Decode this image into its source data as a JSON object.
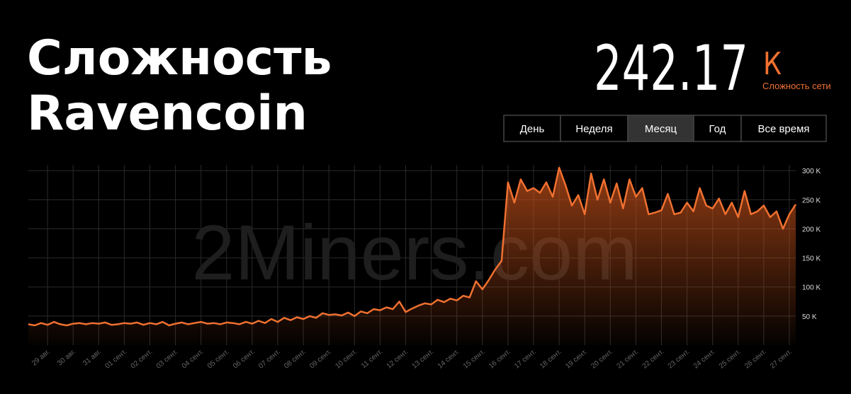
{
  "header": {
    "title_lines": [
      "Сложность",
      "Ravencoin"
    ],
    "value": "242.17",
    "unit": "К",
    "caption": "Сложность сети",
    "tabs": [
      "День",
      "Неделя",
      "Месяц",
      "Год",
      "Все время"
    ],
    "active_tab": "Месяц",
    "watermark": "2Miners.com"
  },
  "chart_data": {
    "type": "area-line",
    "color": "#f07030",
    "categories": [
      null,
      null,
      null,
      "29 авг.",
      null,
      null,
      null,
      "30 авг.",
      null,
      null,
      null,
      "31 авг.",
      null,
      null,
      null,
      "01 сент.",
      null,
      null,
      null,
      "02 сент.",
      null,
      null,
      null,
      "03 сент.",
      null,
      null,
      null,
      "04 сент.",
      null,
      null,
      null,
      "05 сент.",
      null,
      null,
      null,
      "06 сент.",
      null,
      null,
      null,
      "07 сент.",
      null,
      null,
      null,
      "08 сент.",
      null,
      null,
      null,
      "09 сент.",
      null,
      null,
      null,
      "10 сент.",
      null,
      null,
      null,
      "11 сент.",
      null,
      null,
      null,
      "12 сент.",
      null,
      null,
      null,
      "13 сент.",
      null,
      null,
      null,
      "14 сент.",
      null,
      null,
      null,
      "15 сент.",
      null,
      null,
      null,
      "16 сент.",
      null,
      null,
      null,
      "17 сент.",
      null,
      null,
      null,
      "18 сент.",
      null,
      null,
      null,
      "19 сент.",
      null,
      null,
      null,
      "20 сент.",
      null,
      null,
      null,
      "21 сент.",
      null,
      null,
      null,
      "22 сент.",
      null,
      null,
      null,
      "23 сент.",
      null,
      null,
      null,
      "24 сент.",
      null,
      null,
      null,
      "25 сент.",
      null,
      null,
      null,
      "26 сент.",
      null,
      null,
      null,
      "27 сент.",
      null
    ],
    "values": [
      36,
      34,
      38,
      35,
      40,
      36,
      34,
      37,
      38,
      36,
      38,
      37,
      39,
      35,
      36,
      38,
      37,
      39,
      35,
      38,
      36,
      40,
      34,
      37,
      39,
      36,
      38,
      40,
      37,
      38,
      36,
      39,
      38,
      36,
      40,
      37,
      42,
      38,
      45,
      40,
      47,
      43,
      48,
      45,
      50,
      47,
      55,
      52,
      53,
      51,
      56,
      50,
      58,
      55,
      62,
      60,
      65,
      62,
      75,
      57,
      63,
      68,
      72,
      70,
      78,
      74,
      80,
      77,
      85,
      82,
      110,
      96,
      112,
      130,
      145,
      280,
      245,
      285,
      265,
      270,
      262,
      280,
      255,
      305,
      275,
      240,
      258,
      225,
      295,
      250,
      285,
      245,
      278,
      235,
      285,
      255,
      270,
      225,
      228,
      232,
      260,
      225,
      228,
      245,
      230,
      270,
      240,
      235,
      252,
      225,
      245,
      220,
      265,
      225,
      230,
      240,
      220,
      230,
      200,
      225,
      242
    ],
    "ylim": [
      0,
      310
    ],
    "yticks": [
      {
        "value": 50,
        "label": "50 K"
      },
      {
        "value": 100,
        "label": "100 K"
      },
      {
        "value": 150,
        "label": "150 K"
      },
      {
        "value": 200,
        "label": "200 K"
      },
      {
        "value": 250,
        "label": "250 K"
      },
      {
        "value": 300,
        "label": "300 K"
      }
    ],
    "grid": true
  }
}
